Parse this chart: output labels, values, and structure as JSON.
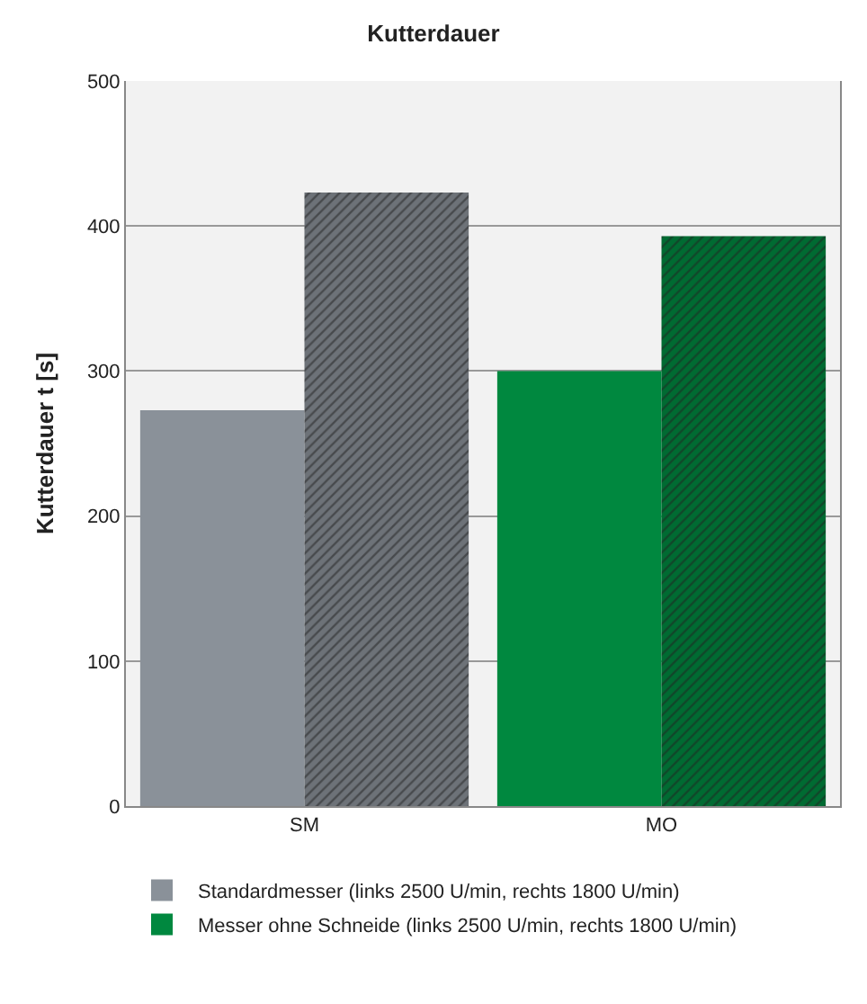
{
  "chart_data": {
    "type": "bar",
    "title": "Kutterdauer",
    "ylabel": "Kutterdauer t [s]",
    "categories": [
      "SM",
      "MO"
    ],
    "series": [
      {
        "name": "Standardmesser (links 2500 U/min, rechts 1800 U/min)",
        "color": "#8a9199",
        "values": [
          273,
          null
        ]
      },
      {
        "color": "#6d7278",
        "values": [
          423,
          null
        ]
      },
      {
        "name": "Messer ohne Schneide (links 2500 U/min, rechts 1800 U/min)",
        "color": "#00883f",
        "values": [
          null,
          300
        ]
      },
      {
        "color": "#006b32",
        "values": [
          null,
          393
        ]
      }
    ],
    "ylim": [
      0,
      500
    ],
    "yticks": [
      0,
      100,
      200,
      300,
      400,
      500
    ],
    "grid": "y",
    "legend": "bottom"
  }
}
